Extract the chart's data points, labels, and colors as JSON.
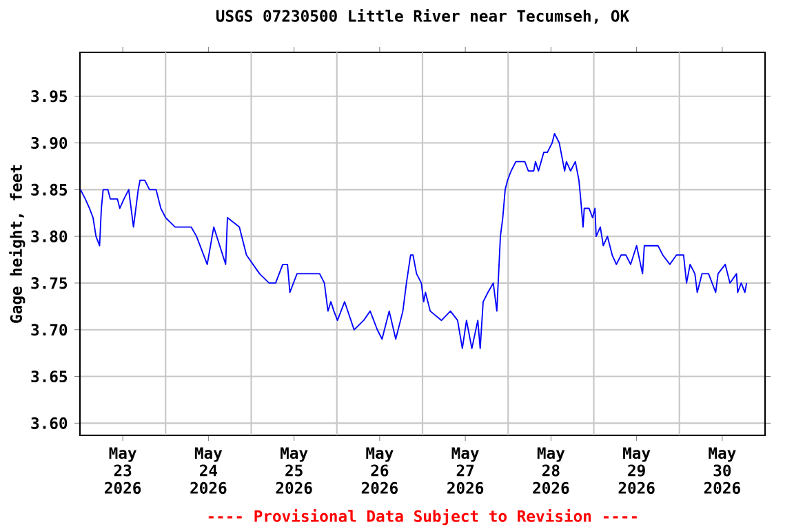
{
  "chart_data": {
    "type": "line",
    "title": "USGS 07230500 Little River near Tecumseh, OK",
    "ylabel": "Gage height, feet",
    "annotations": [
      "---- Provisional Data Subject to Revision ----"
    ],
    "xlim": [
      "2026-05-23T00:00",
      "2026-05-31T00:00"
    ],
    "xticks": [
      {
        "value": "2026-05-23T12:00",
        "label": "May 23 2026"
      },
      {
        "value": "2026-05-24T12:00",
        "label": "May 24 2026"
      },
      {
        "value": "2026-05-25T12:00",
        "label": "May 25 2026"
      },
      {
        "value": "2026-05-26T12:00",
        "label": "May 26 2026"
      },
      {
        "value": "2026-05-27T12:00",
        "label": "May 27 2026"
      },
      {
        "value": "2026-05-28T12:00",
        "label": "May 28 2026"
      },
      {
        "value": "2026-05-29T12:00",
        "label": "May 29 2026"
      },
      {
        "value": "2026-05-30T12:00",
        "label": "May 30 2026"
      },
      {
        "value": "2026-05-24T00:00",
        "label": null
      },
      {
        "value": "2026-05-25T00:00",
        "label": null
      },
      {
        "value": "2026-05-26T00:00",
        "label": null
      },
      {
        "value": "2026-05-27T00:00",
        "label": null
      },
      {
        "value": "2026-05-28T00:00",
        "label": null
      },
      {
        "value": "2026-05-29T00:00",
        "label": null
      },
      {
        "value": "2026-05-30T00:00",
        "label": null
      }
    ],
    "ylim": [
      3.587,
      3.997
    ],
    "yticks": [
      {
        "value": 3.6,
        "label": "3.60"
      },
      3.65,
      {
        "value": 3.7,
        "label": "3.70"
      },
      3.75,
      {
        "value": 3.8,
        "label": "3.80"
      },
      3.85,
      {
        "value": 3.9,
        "label": "3.90"
      },
      3.95
    ],
    "grid": true,
    "line_style": "solid",
    "marker": "none",
    "series": [
      {
        "color": "#0000ff",
        "x": [
          "2026-05-23T00:10",
          "2026-05-23T01:30",
          "2026-05-23T02:40",
          "2026-05-23T03:40",
          "2026-05-23T04:30",
          "2026-05-23T05:30",
          "2026-05-23T06:00",
          "2026-05-23T06:30",
          "2026-05-23T07:50",
          "2026-05-23T08:30",
          "2026-05-23T10:30",
          "2026-05-23T11:10",
          "2026-05-23T12:20",
          "2026-05-23T13:40",
          "2026-05-23T15:00",
          "2026-05-23T16:20",
          "2026-05-23T16:50",
          "2026-05-23T18:10",
          "2026-05-23T19:30",
          "2026-05-23T21:20",
          "2026-05-23T22:40",
          "2026-05-24T00:00",
          "2026-05-24T02:40",
          "2026-05-24T07:10",
          "2026-05-24T08:40",
          "2026-05-24T11:40",
          "2026-05-24T13:30",
          "2026-05-24T16:50",
          "2026-05-24T17:20",
          "2026-05-24T20:40",
          "2026-05-24T22:40",
          "2026-05-25T00:30",
          "2026-05-25T02:20",
          "2026-05-25T05:00",
          "2026-05-25T06:50",
          "2026-05-25T08:50",
          "2026-05-25T10:10",
          "2026-05-25T10:50",
          "2026-05-25T12:50",
          "2026-05-25T15:20",
          "2026-05-25T19:10",
          "2026-05-25T20:30",
          "2026-05-25T21:30",
          "2026-05-25T22:20",
          "2026-05-25T23:10",
          "2026-05-26T00:10",
          "2026-05-26T02:10",
          "2026-05-26T04:50",
          "2026-05-26T07:30",
          "2026-05-26T09:20",
          "2026-05-26T11:20",
          "2026-05-26T12:40",
          "2026-05-26T14:40",
          "2026-05-26T16:30",
          "2026-05-26T18:30",
          "2026-05-26T19:30",
          "2026-05-26T20:40",
          "2026-05-26T21:20",
          "2026-05-26T22:20",
          "2026-05-26T23:40",
          "2026-05-27T00:20",
          "2026-05-27T00:50",
          "2026-05-27T02:10",
          "2026-05-27T05:20",
          "2026-05-27T07:50",
          "2026-05-27T09:50",
          "2026-05-27T11:10",
          "2026-05-27T12:20",
          "2026-05-27T13:50",
          "2026-05-27T15:30",
          "2026-05-27T16:10",
          "2026-05-27T17:00",
          "2026-05-27T18:20",
          "2026-05-27T19:50",
          "2026-05-27T20:50",
          "2026-05-27T21:20",
          "2026-05-27T21:50",
          "2026-05-27T22:30",
          "2026-05-27T23:10",
          "2026-05-27T23:50",
          "2026-05-28T00:50",
          "2026-05-28T02:10",
          "2026-05-28T04:40",
          "2026-05-28T05:40",
          "2026-05-28T07:10",
          "2026-05-28T07:40",
          "2026-05-28T08:30",
          "2026-05-28T10:00",
          "2026-05-28T11:00",
          "2026-05-28T12:20",
          "2026-05-28T13:00",
          "2026-05-28T14:20",
          "2026-05-28T14:50",
          "2026-05-28T15:50",
          "2026-05-28T16:20",
          "2026-05-28T17:30",
          "2026-05-28T18:50",
          "2026-05-28T19:50",
          "2026-05-28T20:20",
          "2026-05-28T21:00",
          "2026-05-28T21:20",
          "2026-05-28T22:40",
          "2026-05-28T23:40",
          "2026-05-29T00:20",
          "2026-05-29T00:40",
          "2026-05-29T01:50",
          "2026-05-29T02:40",
          "2026-05-29T03:50",
          "2026-05-29T05:10",
          "2026-05-29T06:20",
          "2026-05-29T07:40",
          "2026-05-29T09:00",
          "2026-05-29T10:20",
          "2026-05-29T12:00",
          "2026-05-29T13:40",
          "2026-05-29T14:10",
          "2026-05-29T18:00",
          "2026-05-29T19:20",
          "2026-05-29T21:20",
          "2026-05-29T23:10",
          "2026-05-30T01:10",
          "2026-05-30T02:00",
          "2026-05-30T03:00",
          "2026-05-30T04:20",
          "2026-05-30T05:00",
          "2026-05-30T06:20",
          "2026-05-30T08:10",
          "2026-05-30T10:10",
          "2026-05-30T10:50",
          "2026-05-30T12:50",
          "2026-05-30T14:10",
          "2026-05-30T16:00",
          "2026-05-30T16:20",
          "2026-05-30T17:20",
          "2026-05-30T18:20",
          "2026-05-30T18:50"
        ],
        "values": [
          3.85,
          3.84,
          3.83,
          3.82,
          3.8,
          3.79,
          3.83,
          3.85,
          3.85,
          3.84,
          3.84,
          3.83,
          3.84,
          3.85,
          3.81,
          3.85,
          3.86,
          3.86,
          3.85,
          3.85,
          3.83,
          3.82,
          3.81,
          3.81,
          3.8,
          3.77,
          3.81,
          3.77,
          3.82,
          3.81,
          3.78,
          3.77,
          3.76,
          3.75,
          3.75,
          3.77,
          3.77,
          3.74,
          3.76,
          3.76,
          3.76,
          3.75,
          3.72,
          3.73,
          3.72,
          3.71,
          3.73,
          3.7,
          3.71,
          3.72,
          3.7,
          3.69,
          3.72,
          3.69,
          3.72,
          3.75,
          3.78,
          3.78,
          3.76,
          3.75,
          3.73,
          3.74,
          3.72,
          3.71,
          3.72,
          3.71,
          3.68,
          3.71,
          3.68,
          3.71,
          3.68,
          3.73,
          3.74,
          3.75,
          3.72,
          3.76,
          3.8,
          3.82,
          3.85,
          3.86,
          3.87,
          3.88,
          3.88,
          3.87,
          3.87,
          3.88,
          3.87,
          3.89,
          3.89,
          3.9,
          3.91,
          3.9,
          3.89,
          3.87,
          3.88,
          3.87,
          3.88,
          3.86,
          3.84,
          3.81,
          3.83,
          3.83,
          3.82,
          3.83,
          3.8,
          3.81,
          3.79,
          3.8,
          3.78,
          3.77,
          3.78,
          3.78,
          3.77,
          3.79,
          3.76,
          3.79,
          3.79,
          3.78,
          3.77,
          3.78,
          3.78,
          3.75,
          3.77,
          3.76,
          3.74,
          3.76,
          3.76,
          3.74,
          3.76,
          3.77,
          3.75,
          3.76,
          3.74,
          3.75,
          3.74,
          3.75
        ]
      }
    ]
  }
}
